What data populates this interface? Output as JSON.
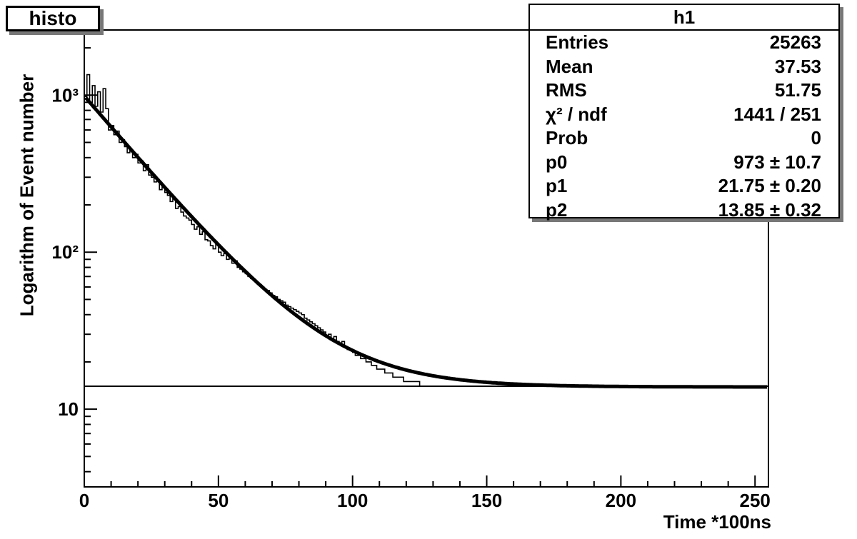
{
  "title": "histo",
  "stats": {
    "name": "h1",
    "rows": [
      {
        "label": "Entries",
        "value": "25263"
      },
      {
        "label": "Mean",
        "value": "37.53"
      },
      {
        "label": "RMS",
        "value": "51.75"
      },
      {
        "label": "χ² / ndf",
        "value": "1441 / 251"
      },
      {
        "label": "Prob",
        "value": "0"
      },
      {
        "label": "p0",
        "value": "973 ± 10.7"
      },
      {
        "label": "p1",
        "value": "21.75 ± 0.20"
      },
      {
        "label": "p2",
        "value": "13.85 ± 0.32"
      }
    ]
  },
  "chart_data": {
    "type": "line",
    "xlabel": "Time *100ns",
    "ylabel": "Logarithm of Event number",
    "xlim": [
      0,
      255
    ],
    "ylim": [
      3.2,
      2600
    ],
    "yscale": "log",
    "x_ticks": [
      0,
      50,
      100,
      150,
      200,
      250
    ],
    "y_ticks": [
      {
        "value": 10,
        "label": "10"
      },
      {
        "value": 100,
        "label": "10²"
      },
      {
        "value": 1000,
        "label": "10³"
      }
    ],
    "grid": false,
    "series": [
      {
        "kind": "histogram",
        "bin_width": 1,
        "x_start": 0,
        "values": [
          980,
          1350,
          900,
          1150,
          850,
          1050,
          780,
          1100,
          820,
          600,
          640,
          560,
          590,
          500,
          520,
          470,
          430,
          450,
          400,
          420,
          370,
          380,
          330,
          360,
          310,
          300,
          280,
          290,
          250,
          260,
          240,
          230,
          210,
          220,
          190,
          195,
          180,
          170,
          165,
          160,
          150,
          140,
          145,
          130,
          135,
          120,
          118,
          110,
          105,
          112,
          100,
          95,
          98,
          90,
          92,
          85,
          88,
          80,
          78,
          75,
          73,
          70,
          68,
          66,
          64,
          62,
          60,
          58,
          57,
          55,
          53,
          52,
          50,
          49,
          48,
          46,
          45,
          44,
          43,
          42,
          41,
          40,
          38,
          37,
          36,
          35,
          34,
          33,
          32,
          31,
          29,
          30,
          28,
          29,
          27,
          26,
          27,
          25,
          24,
          24,
          23,
          22,
          22,
          21,
          21,
          20,
          20,
          19,
          19,
          18,
          18,
          18,
          17,
          17,
          17,
          16,
          16,
          16,
          16,
          15,
          15,
          15,
          15,
          15,
          15,
          14,
          14,
          14,
          14,
          14,
          14,
          14,
          14,
          14,
          14,
          14,
          14,
          14,
          14,
          14,
          14,
          14,
          14,
          14,
          14,
          14,
          14,
          14,
          14,
          14,
          14,
          14,
          14,
          14,
          14,
          14,
          14,
          14,
          14,
          14,
          14,
          14,
          14,
          14,
          14,
          14,
          14,
          14,
          14,
          14,
          14,
          14,
          14,
          14,
          14,
          14,
          14,
          14,
          14,
          14,
          14,
          14,
          14,
          14,
          14,
          14,
          14,
          14,
          14,
          14,
          14,
          14,
          14,
          14,
          14,
          14,
          14,
          14,
          14,
          14,
          14,
          14,
          14,
          14,
          14,
          14,
          14,
          14,
          14,
          14,
          14,
          14,
          14,
          14,
          14,
          14,
          14,
          14,
          14,
          14,
          14,
          14,
          14,
          14,
          14,
          14,
          14,
          14,
          14,
          14,
          14,
          14,
          14,
          14,
          14,
          14,
          14,
          14,
          14,
          14,
          14,
          14,
          14,
          14,
          14,
          14,
          14,
          14,
          14,
          14,
          14,
          14,
          14,
          14,
          14
        ]
      },
      {
        "kind": "fit",
        "function": "p0*exp(-x/p1)+p2",
        "params": {
          "p0": 973,
          "p1": 21.75,
          "p2": 13.85
        }
      },
      {
        "kind": "constant",
        "value": 14
      }
    ]
  }
}
